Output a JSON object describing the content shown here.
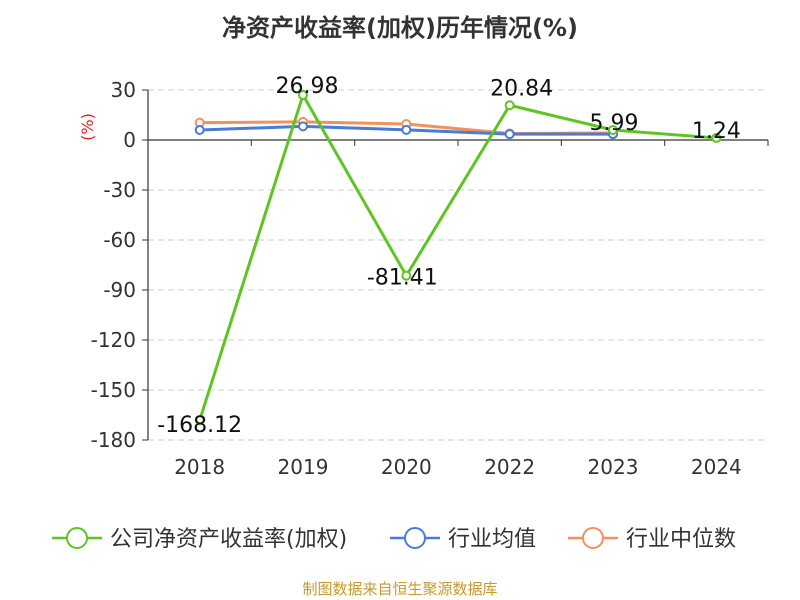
{
  "chart_data": {
    "type": "line",
    "title": "净资产收益率(加权)历年情况(%)",
    "ylabel": "(%)",
    "categories": [
      "2018",
      "2019",
      "2020",
      "2022",
      "2023",
      "2024"
    ],
    "yticks": [
      30,
      0,
      -30,
      -60,
      -90,
      -120,
      -150,
      -180
    ],
    "ylim": [
      -180,
      30
    ],
    "grid": "horizontal dashed",
    "legend_position": "bottom",
    "series": [
      {
        "name": "公司净资产收益率(加权)",
        "color": "#5ec424",
        "values": [
          -168.12,
          26.98,
          -81.41,
          20.84,
          5.99,
          1.24
        ],
        "labels": [
          "-168.12",
          "26.98",
          "-81.41",
          "20.84",
          "5.99",
          "1.24"
        ]
      },
      {
        "name": "行业均值",
        "color": "#4a7bd8",
        "values": [
          6.0,
          8.2,
          6.1,
          3.5,
          3.5,
          null
        ]
      },
      {
        "name": "行业中位数",
        "color": "#f0915e",
        "values": [
          10.4,
          10.9,
          9.6,
          3.9,
          4.2,
          null
        ]
      }
    ],
    "source": "制图数据来自恒生聚源数据库"
  }
}
